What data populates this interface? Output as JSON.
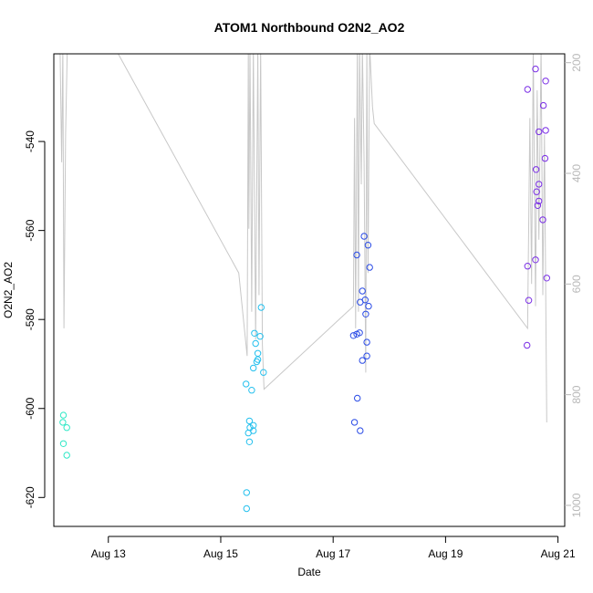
{
  "chart_data": {
    "type": "scatter",
    "title": "ATOM1 Northbound O2N2_AO2",
    "xlabel": "Date",
    "ylabel": "O2N2_AO2",
    "x_tick_labels": [
      "Aug 13",
      "Aug 15",
      "Aug 17",
      "Aug 19",
      "Aug 21"
    ],
    "x_tick_values": [
      13.0,
      15.0,
      17.0,
      19.0,
      21.0
    ],
    "xlim": [
      12.03,
      21.12
    ],
    "y_tick_labels": [
      "-540",
      "-560",
      "-580",
      "-600",
      "-620"
    ],
    "y_tick_values": [
      -540,
      -560,
      -580,
      -600,
      -620
    ],
    "ylim": [
      -626.5,
      -520.3
    ],
    "y2_tick_labels": [
      "200",
      "400",
      "600",
      "800",
      "1000"
    ],
    "y2_tick_values": [
      200,
      400,
      600,
      800,
      1000
    ],
    "y2lim": [
      184,
      1038
    ],
    "colors": {
      "background_line": "#c8c8c8",
      "right_axis": "#b8b8b8",
      "series_aug12": "#2fe8c6",
      "series_aug15": "#24c0ee",
      "series_aug17": "#2a4be6",
      "series_aug20": "#7a2ee6"
    },
    "series": [
      {
        "color": "#2fe8c6",
        "points": [
          [
            12.2,
            -601.5
          ],
          [
            12.19,
            -603.1
          ],
          [
            12.26,
            -604.3
          ],
          [
            12.2,
            -607.9
          ],
          [
            12.26,
            -610.5
          ]
        ]
      },
      {
        "color": "#24c0ee",
        "points": [
          [
            15.72,
            -577.3
          ],
          [
            15.6,
            -583.1
          ],
          [
            15.7,
            -583.8
          ],
          [
            15.62,
            -585.4
          ],
          [
            15.66,
            -587.6
          ],
          [
            15.66,
            -589.0
          ],
          [
            15.64,
            -589.5
          ],
          [
            15.58,
            -590.9
          ],
          [
            15.76,
            -591.9
          ],
          [
            15.45,
            -594.5
          ],
          [
            15.55,
            -595.9
          ],
          [
            15.51,
            -602.8
          ],
          [
            15.58,
            -603.8
          ],
          [
            15.52,
            -604.3
          ],
          [
            15.58,
            -605.0
          ],
          [
            15.49,
            -605.5
          ],
          [
            15.51,
            -607.5
          ],
          [
            15.46,
            -618.9
          ],
          [
            15.46,
            -622.5
          ]
        ]
      },
      {
        "color": "#2a4be6",
        "points": [
          [
            17.55,
            -561.3
          ],
          [
            17.62,
            -563.3
          ],
          [
            17.42,
            -565.5
          ],
          [
            17.65,
            -568.3
          ],
          [
            17.52,
            -573.6
          ],
          [
            17.57,
            -575.6
          ],
          [
            17.48,
            -576.1
          ],
          [
            17.63,
            -577.0
          ],
          [
            17.58,
            -578.8
          ],
          [
            17.47,
            -583.0
          ],
          [
            17.42,
            -583.3
          ],
          [
            17.36,
            -583.6
          ],
          [
            17.6,
            -585.1
          ],
          [
            17.6,
            -588.2
          ],
          [
            17.52,
            -589.2
          ],
          [
            17.43,
            -597.7
          ],
          [
            17.38,
            -603.1
          ],
          [
            17.48,
            -605.0
          ]
        ]
      },
      {
        "color": "#7a2ee6",
        "points": [
          [
            20.6,
            -523.7
          ],
          [
            20.78,
            -526.4
          ],
          [
            20.46,
            -528.3
          ],
          [
            20.74,
            -531.9
          ],
          [
            20.78,
            -537.5
          ],
          [
            20.66,
            -537.8
          ],
          [
            20.77,
            -543.8
          ],
          [
            20.61,
            -546.3
          ],
          [
            20.66,
            -549.6
          ],
          [
            20.62,
            -551.3
          ],
          [
            20.66,
            -553.4
          ],
          [
            20.64,
            -554.4
          ],
          [
            20.73,
            -557.6
          ],
          [
            20.6,
            -566.6
          ],
          [
            20.46,
            -568.0
          ],
          [
            20.8,
            -570.7
          ],
          [
            20.48,
            -575.7
          ],
          [
            20.45,
            -585.8
          ]
        ]
      }
    ],
    "background_line": {
      "axis": "right",
      "color": "#c8c8c8",
      "points": [
        [
          12.14,
          170
        ],
        [
          12.17,
          380
        ],
        [
          12.19,
          170
        ],
        [
          12.21,
          680
        ],
        [
          12.24,
          330
        ],
        [
          12.27,
          170
        ],
        [
          12.33,
          170
        ],
        [
          13.1,
          170
        ],
        [
          15.32,
          580
        ],
        [
          15.47,
          730
        ],
        [
          15.49,
          170
        ],
        [
          15.5,
          500
        ],
        [
          15.52,
          170
        ],
        [
          15.55,
          650
        ],
        [
          15.58,
          170
        ],
        [
          15.62,
          700
        ],
        [
          15.66,
          170
        ],
        [
          15.68,
          620
        ],
        [
          15.71,
          170
        ],
        [
          15.74,
          710
        ],
        [
          15.77,
          790
        ],
        [
          17.36,
          640
        ],
        [
          17.38,
          300
        ],
        [
          17.4,
          680
        ],
        [
          17.43,
          170
        ],
        [
          17.45,
          650
        ],
        [
          17.47,
          170
        ],
        [
          17.5,
          420
        ],
        [
          17.52,
          170
        ],
        [
          17.55,
          380
        ],
        [
          17.58,
          760
        ],
        [
          17.6,
          170
        ],
        [
          17.62,
          580
        ],
        [
          17.65,
          170
        ],
        [
          17.7,
          280
        ],
        [
          17.73,
          310
        ],
        [
          20.46,
          680
        ],
        [
          20.5,
          300
        ],
        [
          20.53,
          600
        ],
        [
          20.56,
          170
        ],
        [
          20.6,
          640
        ],
        [
          20.63,
          250
        ],
        [
          20.66,
          520
        ],
        [
          20.7,
          170
        ],
        [
          20.73,
          620
        ],
        [
          20.76,
          330
        ],
        [
          20.8,
          850
        ]
      ]
    }
  }
}
